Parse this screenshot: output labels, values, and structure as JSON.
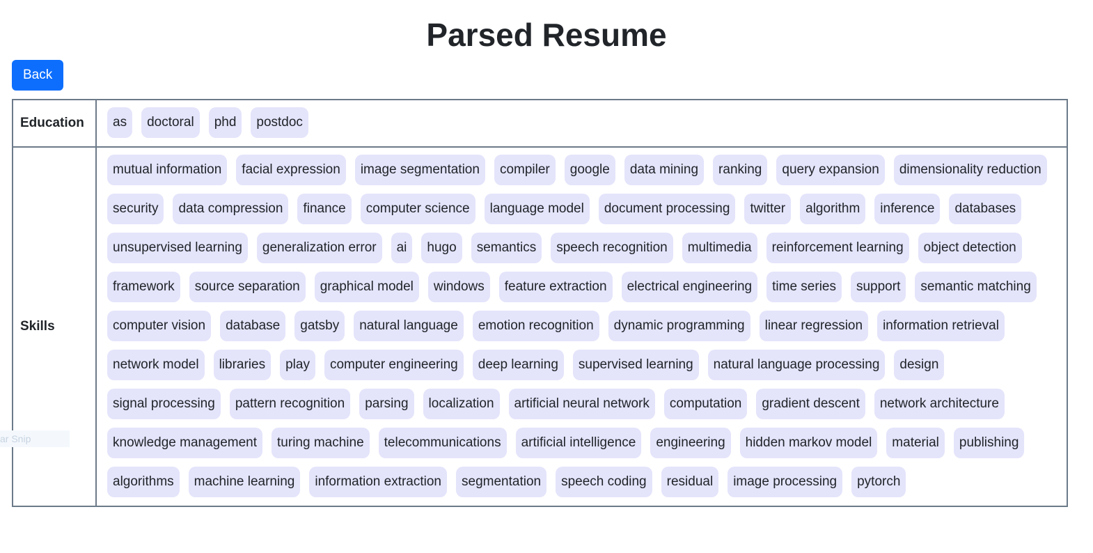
{
  "page": {
    "title": "Parsed Resume",
    "back_label": "Back",
    "ghost_text": "ar Snip"
  },
  "colors": {
    "button": "#0d6efd",
    "tag_bg": "#e4e4fb",
    "border": "#6c7a89"
  },
  "rows": [
    {
      "label": "Education",
      "tags": [
        "as",
        "doctoral",
        "phd",
        "postdoc"
      ]
    },
    {
      "label": "Skills",
      "tags": [
        "mutual information",
        "facial expression",
        "image segmentation",
        "compiler",
        "google",
        "data mining",
        "ranking",
        "query expansion",
        "dimensionality reduction",
        "security",
        "data compression",
        "finance",
        "computer science",
        "language model",
        "document processing",
        "twitter",
        "algorithm",
        "inference",
        "databases",
        "unsupervised learning",
        "generalization error",
        "ai",
        "hugo",
        "semantics",
        "speech recognition",
        "multimedia",
        "reinforcement learning",
        "object detection",
        "framework",
        "source separation",
        "graphical model",
        "windows",
        "feature extraction",
        "electrical engineering",
        "time series",
        "support",
        "semantic matching",
        "computer vision",
        "database",
        "gatsby",
        "natural language",
        "emotion recognition",
        "dynamic programming",
        "linear regression",
        "information retrieval",
        "network model",
        "libraries",
        "play",
        "computer engineering",
        "deep learning",
        "supervised learning",
        "natural language processing",
        "design",
        "signal processing",
        "pattern recognition",
        "parsing",
        "localization",
        "artificial neural network",
        "computation",
        "gradient descent",
        "network architecture",
        "knowledge management",
        "turing machine",
        "telecommunications",
        "artificial intelligence",
        "engineering",
        "hidden markov model",
        "material",
        "publishing",
        "algorithms",
        "machine learning",
        "information extraction",
        "segmentation",
        "speech coding",
        "residual",
        "image processing",
        "pytorch"
      ]
    }
  ]
}
